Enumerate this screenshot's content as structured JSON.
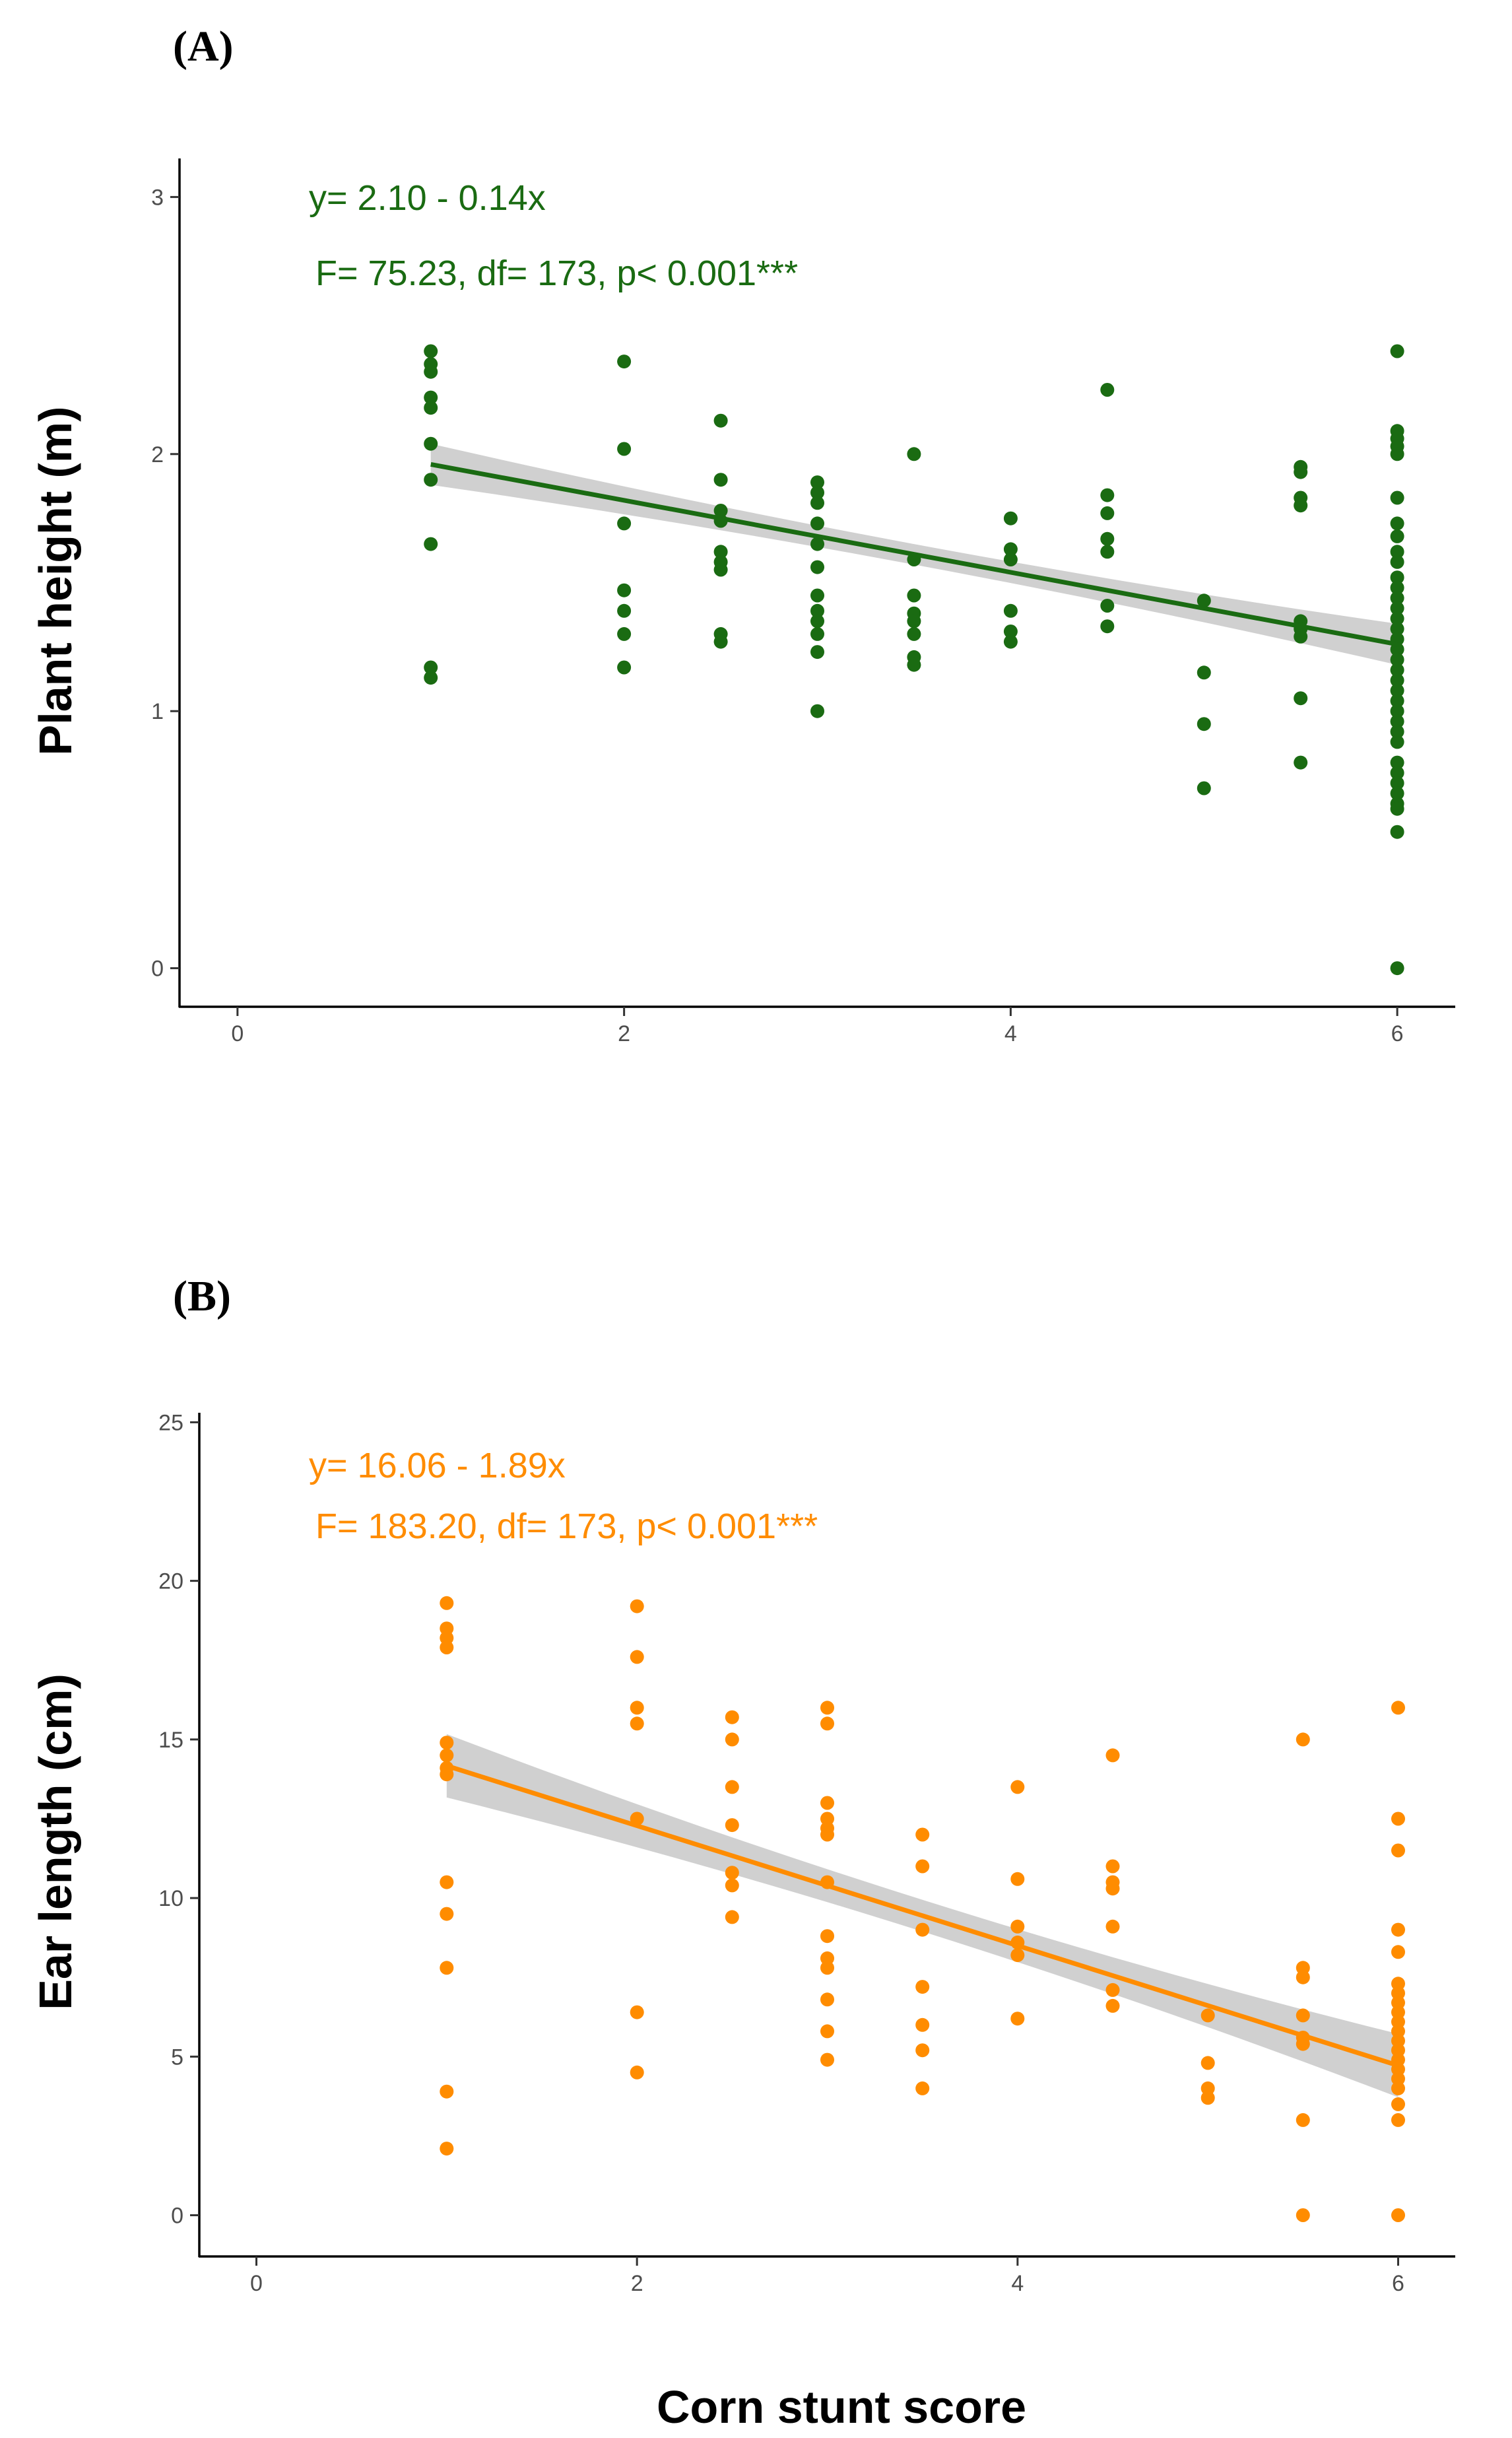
{
  "figure": {
    "xlabel_shared": "Corn stunt score"
  },
  "chart_data": [
    {
      "type": "scatter",
      "panel_label": "(A)",
      "ylabel": "Plant height (m)",
      "xlabel": "Corn stunt score",
      "xlim": [
        -0.3,
        6.3
      ],
      "ylim": [
        -0.15,
        3.15
      ],
      "x_ticks": [
        0,
        2,
        4,
        6
      ],
      "y_ticks": [
        0,
        1,
        2,
        3
      ],
      "color": "#1a6b12",
      "equation": "y= 2.10 - 0.14x",
      "stats": "F= 75.23, df= 173, p< 0.001***",
      "fit": {
        "intercept": 2.1,
        "slope": -0.14,
        "x_range": [
          1,
          6
        ],
        "ci_halfwidth_at_ends": 0.08,
        "ci_halfwidth_at_center": 0.04
      },
      "points": [
        [
          1,
          2.4
        ],
        [
          1,
          2.35
        ],
        [
          1,
          2.32
        ],
        [
          1,
          2.22
        ],
        [
          1,
          2.18
        ],
        [
          1,
          2.04
        ],
        [
          1,
          1.9
        ],
        [
          1,
          1.65
        ],
        [
          1,
          1.17
        ],
        [
          1,
          1.13
        ],
        [
          2,
          2.36
        ],
        [
          2,
          2.02
        ],
        [
          2,
          1.73
        ],
        [
          2,
          1.47
        ],
        [
          2,
          1.39
        ],
        [
          2,
          1.3
        ],
        [
          2,
          1.17
        ],
        [
          2.5,
          2.13
        ],
        [
          2.5,
          1.9
        ],
        [
          2.5,
          1.78
        ],
        [
          2.5,
          1.74
        ],
        [
          2.5,
          1.62
        ],
        [
          2.5,
          1.58
        ],
        [
          2.5,
          1.55
        ],
        [
          2.5,
          1.3
        ],
        [
          2.5,
          1.27
        ],
        [
          3,
          1.89
        ],
        [
          3,
          1.85
        ],
        [
          3,
          1.81
        ],
        [
          3,
          1.73
        ],
        [
          3,
          1.65
        ],
        [
          3,
          1.56
        ],
        [
          3,
          1.45
        ],
        [
          3,
          1.39
        ],
        [
          3,
          1.35
        ],
        [
          3,
          1.3
        ],
        [
          3,
          1.23
        ],
        [
          3,
          1.0
        ],
        [
          3.5,
          2.0
        ],
        [
          3.5,
          1.59
        ],
        [
          3.5,
          1.45
        ],
        [
          3.5,
          1.38
        ],
        [
          3.5,
          1.35
        ],
        [
          3.5,
          1.3
        ],
        [
          3.5,
          1.21
        ],
        [
          3.5,
          1.18
        ],
        [
          4,
          1.75
        ],
        [
          4,
          1.63
        ],
        [
          4,
          1.59
        ],
        [
          4,
          1.39
        ],
        [
          4,
          1.31
        ],
        [
          4,
          1.27
        ],
        [
          4.5,
          2.25
        ],
        [
          4.5,
          1.84
        ],
        [
          4.5,
          1.77
        ],
        [
          4.5,
          1.67
        ],
        [
          4.5,
          1.62
        ],
        [
          4.5,
          1.41
        ],
        [
          4.5,
          1.33
        ],
        [
          5,
          1.43
        ],
        [
          5,
          1.15
        ],
        [
          5,
          0.95
        ],
        [
          5,
          0.7
        ],
        [
          5.5,
          1.95
        ],
        [
          5.5,
          1.93
        ],
        [
          5.5,
          1.83
        ],
        [
          5.5,
          1.8
        ],
        [
          5.5,
          1.35
        ],
        [
          5.5,
          1.32
        ],
        [
          5.5,
          1.29
        ],
        [
          5.5,
          1.05
        ],
        [
          5.5,
          0.8
        ],
        [
          6,
          2.4
        ],
        [
          6,
          2.09
        ],
        [
          6,
          2.06
        ],
        [
          6,
          2.03
        ],
        [
          6,
          2.0
        ],
        [
          6,
          1.83
        ],
        [
          6,
          1.73
        ],
        [
          6,
          1.68
        ],
        [
          6,
          1.62
        ],
        [
          6,
          1.58
        ],
        [
          6,
          1.52
        ],
        [
          6,
          1.48
        ],
        [
          6,
          1.44
        ],
        [
          6,
          1.4
        ],
        [
          6,
          1.36
        ],
        [
          6,
          1.32
        ],
        [
          6,
          1.28
        ],
        [
          6,
          1.24
        ],
        [
          6,
          1.2
        ],
        [
          6,
          1.16
        ],
        [
          6,
          1.12
        ],
        [
          6,
          1.08
        ],
        [
          6,
          1.04
        ],
        [
          6,
          1.0
        ],
        [
          6,
          0.96
        ],
        [
          6,
          0.92
        ],
        [
          6,
          0.88
        ],
        [
          6,
          0.8
        ],
        [
          6,
          0.76
        ],
        [
          6,
          0.72
        ],
        [
          6,
          0.68
        ],
        [
          6,
          0.64
        ],
        [
          6,
          0.62
        ],
        [
          6,
          0.53
        ],
        [
          6,
          0.0
        ]
      ]
    },
    {
      "type": "scatter",
      "panel_label": "(B)",
      "ylabel": "Ear length (cm)",
      "xlabel": "Corn stunt score",
      "xlim": [
        -0.3,
        6.3
      ],
      "ylim": [
        -1.3,
        25.3
      ],
      "x_ticks": [
        0,
        2,
        4,
        6
      ],
      "y_ticks": [
        0,
        5,
        10,
        15,
        20,
        25
      ],
      "color": "#ff8c00",
      "equation": "y= 16.06 - 1.89x",
      "stats": "F= 183.20, df= 173, p< 0.001***",
      "fit": {
        "intercept": 16.06,
        "slope": -1.89,
        "x_range": [
          1,
          6
        ],
        "ci_halfwidth_at_ends": 1.0,
        "ci_halfwidth_at_center": 0.5
      },
      "points": [
        [
          1,
          19.3
        ],
        [
          1,
          18.5
        ],
        [
          1,
          18.2
        ],
        [
          1,
          17.9
        ],
        [
          1,
          14.9
        ],
        [
          1,
          14.5
        ],
        [
          1,
          14.1
        ],
        [
          1,
          13.9
        ],
        [
          1,
          10.5
        ],
        [
          1,
          9.5
        ],
        [
          1,
          7.8
        ],
        [
          1,
          3.9
        ],
        [
          1,
          2.1
        ],
        [
          2,
          19.2
        ],
        [
          2,
          17.6
        ],
        [
          2,
          16.0
        ],
        [
          2,
          15.5
        ],
        [
          2,
          12.5
        ],
        [
          2,
          6.4
        ],
        [
          2,
          4.5
        ],
        [
          2.5,
          15.7
        ],
        [
          2.5,
          15.0
        ],
        [
          2.5,
          13.5
        ],
        [
          2.5,
          12.3
        ],
        [
          2.5,
          10.8
        ],
        [
          2.5,
          10.4
        ],
        [
          2.5,
          9.4
        ],
        [
          3,
          16.0
        ],
        [
          3,
          15.5
        ],
        [
          3,
          13.0
        ],
        [
          3,
          12.5
        ],
        [
          3,
          12.2
        ],
        [
          3,
          12.0
        ],
        [
          3,
          10.5
        ],
        [
          3,
          8.8
        ],
        [
          3,
          8.1
        ],
        [
          3,
          7.8
        ],
        [
          3,
          6.8
        ],
        [
          3,
          5.8
        ],
        [
          3,
          4.9
        ],
        [
          3.5,
          12.0
        ],
        [
          3.5,
          11.0
        ],
        [
          3.5,
          9.0
        ],
        [
          3.5,
          7.2
        ],
        [
          3.5,
          6.0
        ],
        [
          3.5,
          5.2
        ],
        [
          3.5,
          4.0
        ],
        [
          4,
          13.5
        ],
        [
          4,
          10.6
        ],
        [
          4,
          9.1
        ],
        [
          4,
          8.6
        ],
        [
          4,
          8.2
        ],
        [
          4,
          6.2
        ],
        [
          4.5,
          14.5
        ],
        [
          4.5,
          11.0
        ],
        [
          4.5,
          10.5
        ],
        [
          4.5,
          10.3
        ],
        [
          4.5,
          9.1
        ],
        [
          4.5,
          7.1
        ],
        [
          4.5,
          6.6
        ],
        [
          5,
          6.3
        ],
        [
          5,
          4.8
        ],
        [
          5,
          4.0
        ],
        [
          5,
          3.7
        ],
        [
          5.5,
          15.0
        ],
        [
          5.5,
          7.8
        ],
        [
          5.5,
          7.5
        ],
        [
          5.5,
          6.3
        ],
        [
          5.5,
          5.6
        ],
        [
          5.5,
          5.4
        ],
        [
          5.5,
          3.0
        ],
        [
          5.5,
          0.0
        ],
        [
          6,
          16.0
        ],
        [
          6,
          12.5
        ],
        [
          6,
          11.5
        ],
        [
          6,
          9.0
        ],
        [
          6,
          8.3
        ],
        [
          6,
          7.3
        ],
        [
          6,
          7.0
        ],
        [
          6,
          6.7
        ],
        [
          6,
          6.4
        ],
        [
          6,
          6.1
        ],
        [
          6,
          5.8
        ],
        [
          6,
          5.5
        ],
        [
          6,
          5.2
        ],
        [
          6,
          4.9
        ],
        [
          6,
          4.6
        ],
        [
          6,
          4.3
        ],
        [
          6,
          4.0
        ],
        [
          6,
          3.5
        ],
        [
          6,
          3.0
        ],
        [
          6,
          0.0
        ]
      ]
    }
  ]
}
